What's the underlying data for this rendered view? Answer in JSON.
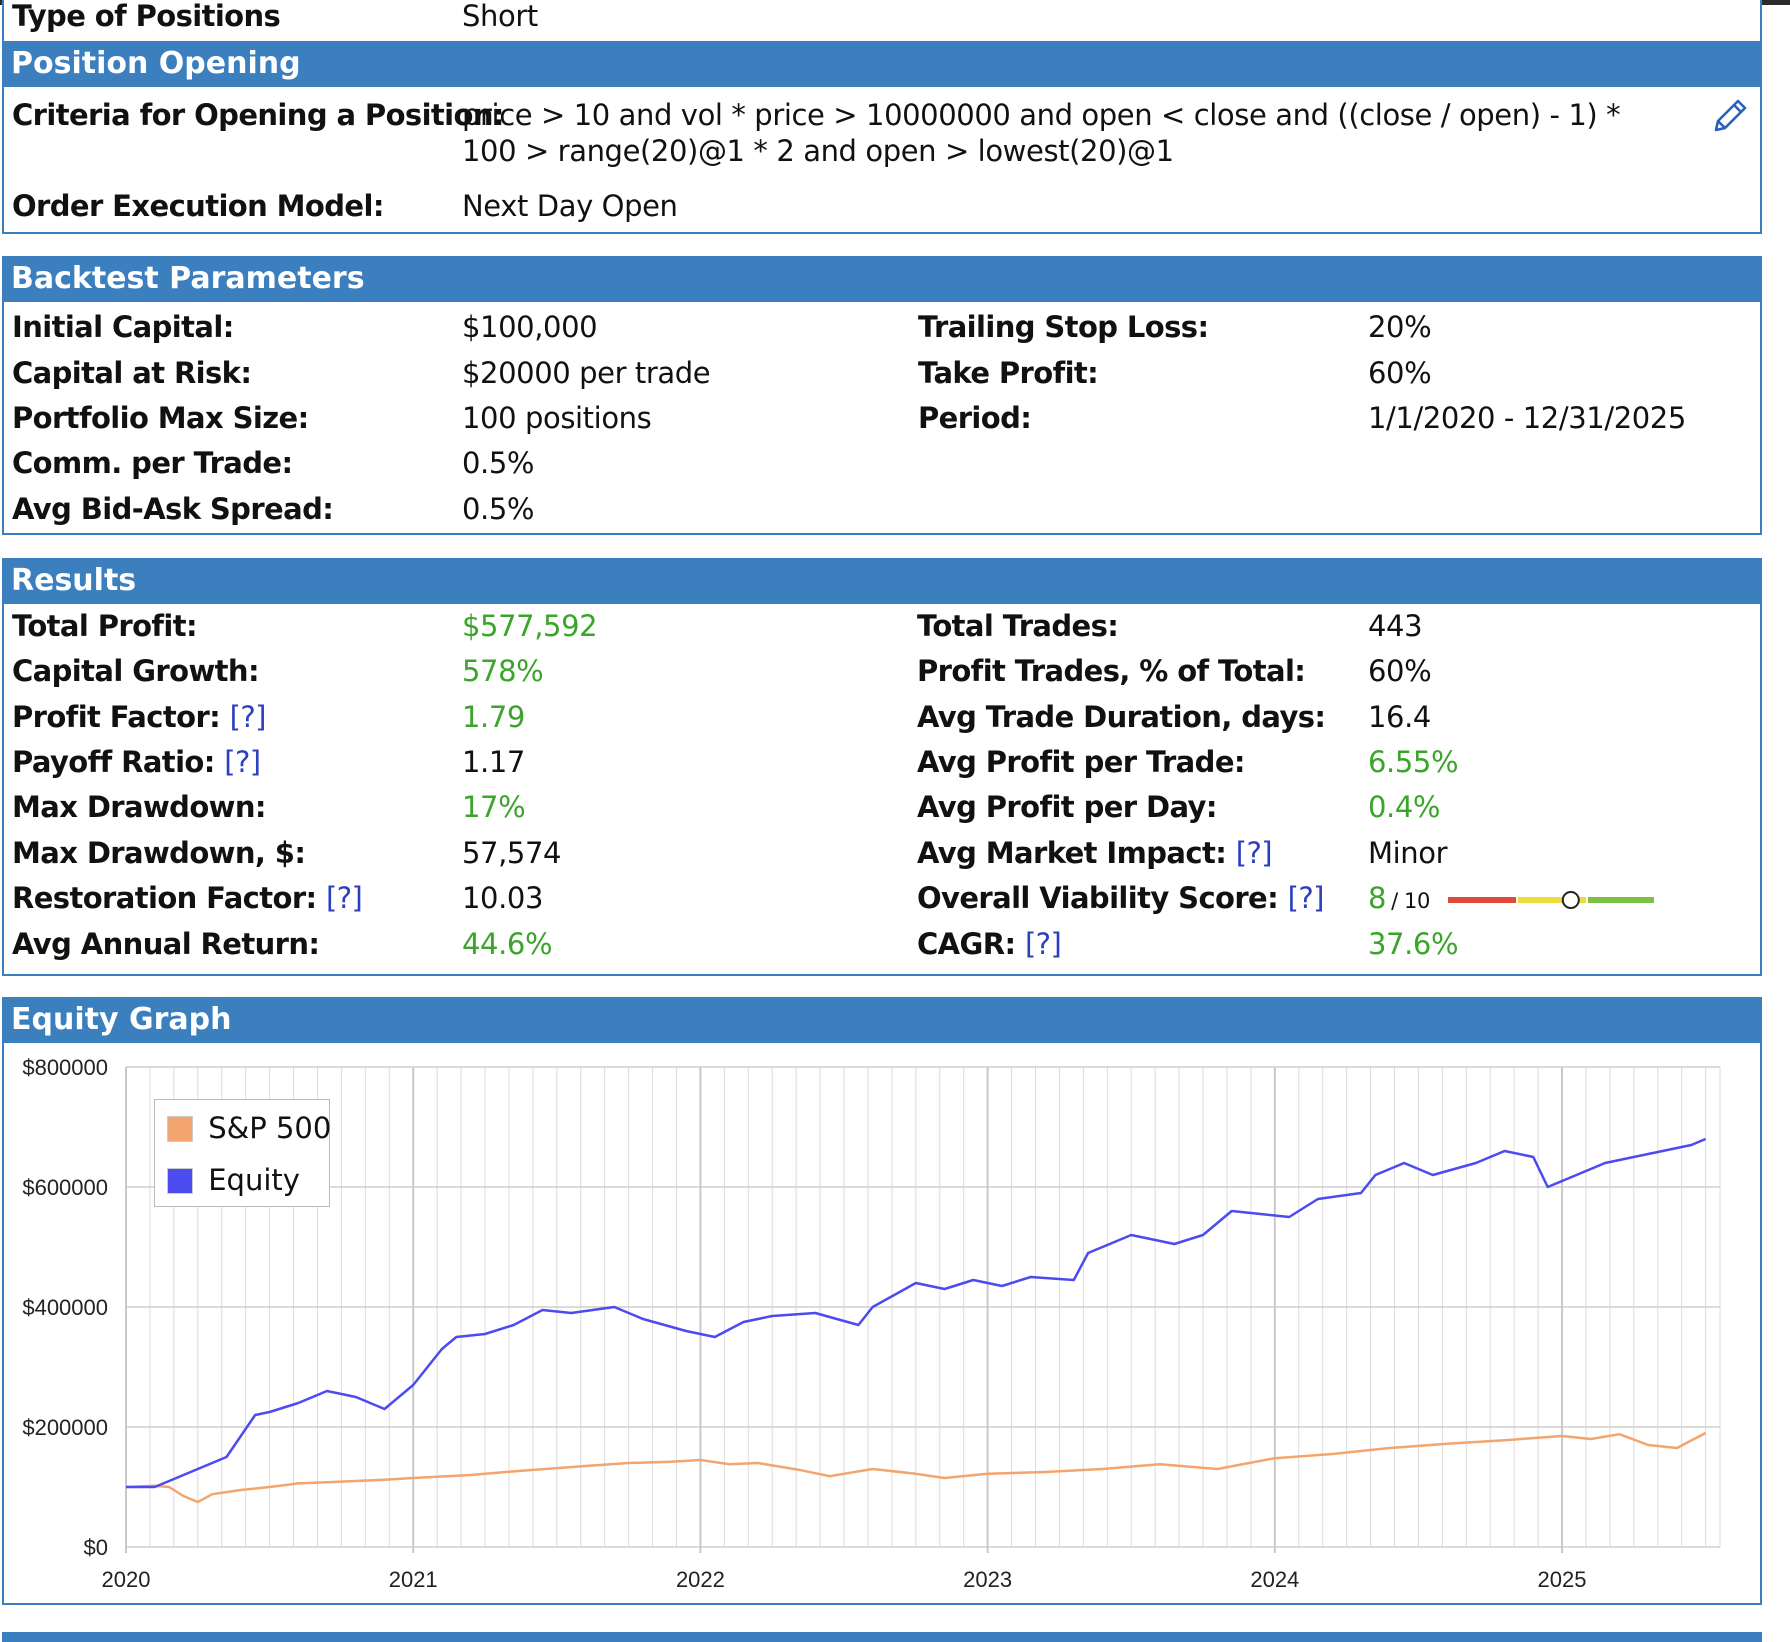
{
  "position_type": {
    "label": "Type of Positions",
    "value": "Short"
  },
  "position_opening": {
    "header": "Position Opening",
    "criteria_label": "Criteria for Opening a Position:",
    "criteria_value": "price > 10 and vol * price > 10000000 and open < close and ((close / open) - 1) * 100 > range(20)@1 * 2 and open > lowest(20)@1",
    "execution_label": "Order Execution Model:",
    "execution_value": "Next Day Open",
    "edit_icon": "pencil-icon"
  },
  "backtest": {
    "header": "Backtest Parameters",
    "left": [
      {
        "label": "Initial Capital:",
        "value": "$100,000"
      },
      {
        "label": "Capital at Risk:",
        "value": "$20000 per trade"
      },
      {
        "label": "Portfolio Max Size:",
        "value": "100 positions"
      },
      {
        "label": "Comm. per Trade:",
        "value": "0.5%"
      },
      {
        "label": "Avg Bid-Ask Spread:",
        "value": "0.5%"
      }
    ],
    "right": [
      {
        "label": "Trailing Stop Loss:",
        "value": "20%"
      },
      {
        "label": "Take Profit:",
        "value": "60%"
      },
      {
        "label": "Period:",
        "value": "1/1/2020 - 12/31/2025"
      }
    ]
  },
  "results": {
    "header": "Results",
    "help_text": "[?]",
    "left": [
      {
        "label": "Total Profit:",
        "value": "$577,592"
      },
      {
        "label": "Capital Growth:",
        "value": "578%"
      },
      {
        "label": "Profit Factor:",
        "value": "1.79"
      },
      {
        "label": "Payoff Ratio:",
        "value": "1.17"
      },
      {
        "label": "Max Drawdown:",
        "value": "17%"
      },
      {
        "label": "Max Drawdown, $:",
        "value": "57,574"
      },
      {
        "label": "Restoration Factor:",
        "value": "10.03"
      },
      {
        "label": "Avg Annual Return:",
        "value": "44.6%"
      }
    ],
    "right": [
      {
        "label": "Total Trades:",
        "value": "443"
      },
      {
        "label": "Profit Trades, % of Total:",
        "value": "60%"
      },
      {
        "label": "Avg Trade Duration, days:",
        "value": "16.4"
      },
      {
        "label": "Avg Profit per Trade:",
        "value": "6.55%"
      },
      {
        "label": "Avg Profit per Day:",
        "value": "0.4%"
      },
      {
        "label": "Avg Market Impact:",
        "value": "Minor"
      },
      {
        "label": "Overall Viability Score:",
        "value": "8",
        "suffix": "/ 10"
      },
      {
        "label": "CAGR:",
        "value": "37.6%"
      }
    ],
    "viability_score": {
      "value": 8,
      "max": 10
    },
    "colors": {
      "positive": "#3aa52a",
      "help": "#2b3fbf",
      "gauge_red": "#e04a3a",
      "gauge_yellow": "#eedc3a",
      "gauge_green": "#7dc142"
    }
  },
  "equity_graph": {
    "header": "Equity Graph"
  },
  "chart_data": {
    "type": "line",
    "title": "",
    "xlabel": "",
    "ylabel": "",
    "x_ticks": [
      "2020",
      "2021",
      "2022",
      "2023",
      "2024",
      "2025"
    ],
    "y_ticks": [
      "$0",
      "$200000",
      "$400000",
      "$600000",
      "$800000"
    ],
    "ylim": [
      0,
      800000
    ],
    "xlim": [
      2020.0,
      2025.55
    ],
    "grid": true,
    "legend": "top-left",
    "series": [
      {
        "name": "S&P 500",
        "color": "#f2a56e",
        "x": [
          2020.0,
          2020.1,
          2020.15,
          2020.2,
          2020.25,
          2020.3,
          2020.4,
          2020.5,
          2020.6,
          2020.7,
          2020.8,
          2020.9,
          2021.0,
          2021.2,
          2021.4,
          2021.6,
          2021.75,
          2021.9,
          2022.0,
          2022.1,
          2022.2,
          2022.35,
          2022.45,
          2022.6,
          2022.75,
          2022.85,
          2023.0,
          2023.2,
          2023.4,
          2023.6,
          2023.8,
          2024.0,
          2024.2,
          2024.4,
          2024.6,
          2024.8,
          2025.0,
          2025.1,
          2025.2,
          2025.3,
          2025.4,
          2025.5
        ],
        "values": [
          100000,
          102000,
          100000,
          85000,
          75000,
          88000,
          95000,
          100000,
          106000,
          108000,
          110000,
          112000,
          115000,
          120000,
          128000,
          135000,
          140000,
          142000,
          145000,
          138000,
          140000,
          128000,
          118000,
          130000,
          122000,
          115000,
          122000,
          125000,
          130000,
          138000,
          130000,
          148000,
          155000,
          165000,
          172000,
          178000,
          185000,
          180000,
          188000,
          170000,
          165000,
          190000
        ]
      },
      {
        "name": "Equity",
        "color": "#4b4bf0",
        "x": [
          2020.0,
          2020.1,
          2020.15,
          2020.25,
          2020.35,
          2020.45,
          2020.5,
          2020.6,
          2020.7,
          2020.8,
          2020.9,
          2021.0,
          2021.1,
          2021.15,
          2021.25,
          2021.35,
          2021.45,
          2021.55,
          2021.7,
          2021.8,
          2021.95,
          2022.05,
          2022.15,
          2022.25,
          2022.4,
          2022.55,
          2022.6,
          2022.75,
          2022.85,
          2022.95,
          2023.05,
          2023.15,
          2023.3,
          2023.35,
          2023.4,
          2023.5,
          2023.65,
          2023.75,
          2023.85,
          2023.95,
          2024.05,
          2024.15,
          2024.3,
          2024.35,
          2024.45,
          2024.55,
          2024.7,
          2024.8,
          2024.9,
          2024.95,
          2025.05,
          2025.15,
          2025.25,
          2025.35,
          2025.45,
          2025.5
        ],
        "values": [
          100000,
          100000,
          110000,
          130000,
          150000,
          220000,
          225000,
          240000,
          260000,
          250000,
          230000,
          270000,
          330000,
          350000,
          355000,
          370000,
          395000,
          390000,
          400000,
          380000,
          360000,
          350000,
          375000,
          385000,
          390000,
          370000,
          400000,
          440000,
          430000,
          445000,
          435000,
          450000,
          445000,
          490000,
          500000,
          520000,
          505000,
          520000,
          560000,
          555000,
          550000,
          580000,
          590000,
          620000,
          640000,
          620000,
          640000,
          660000,
          650000,
          600000,
          620000,
          640000,
          650000,
          660000,
          670000,
          680000
        ]
      }
    ]
  }
}
